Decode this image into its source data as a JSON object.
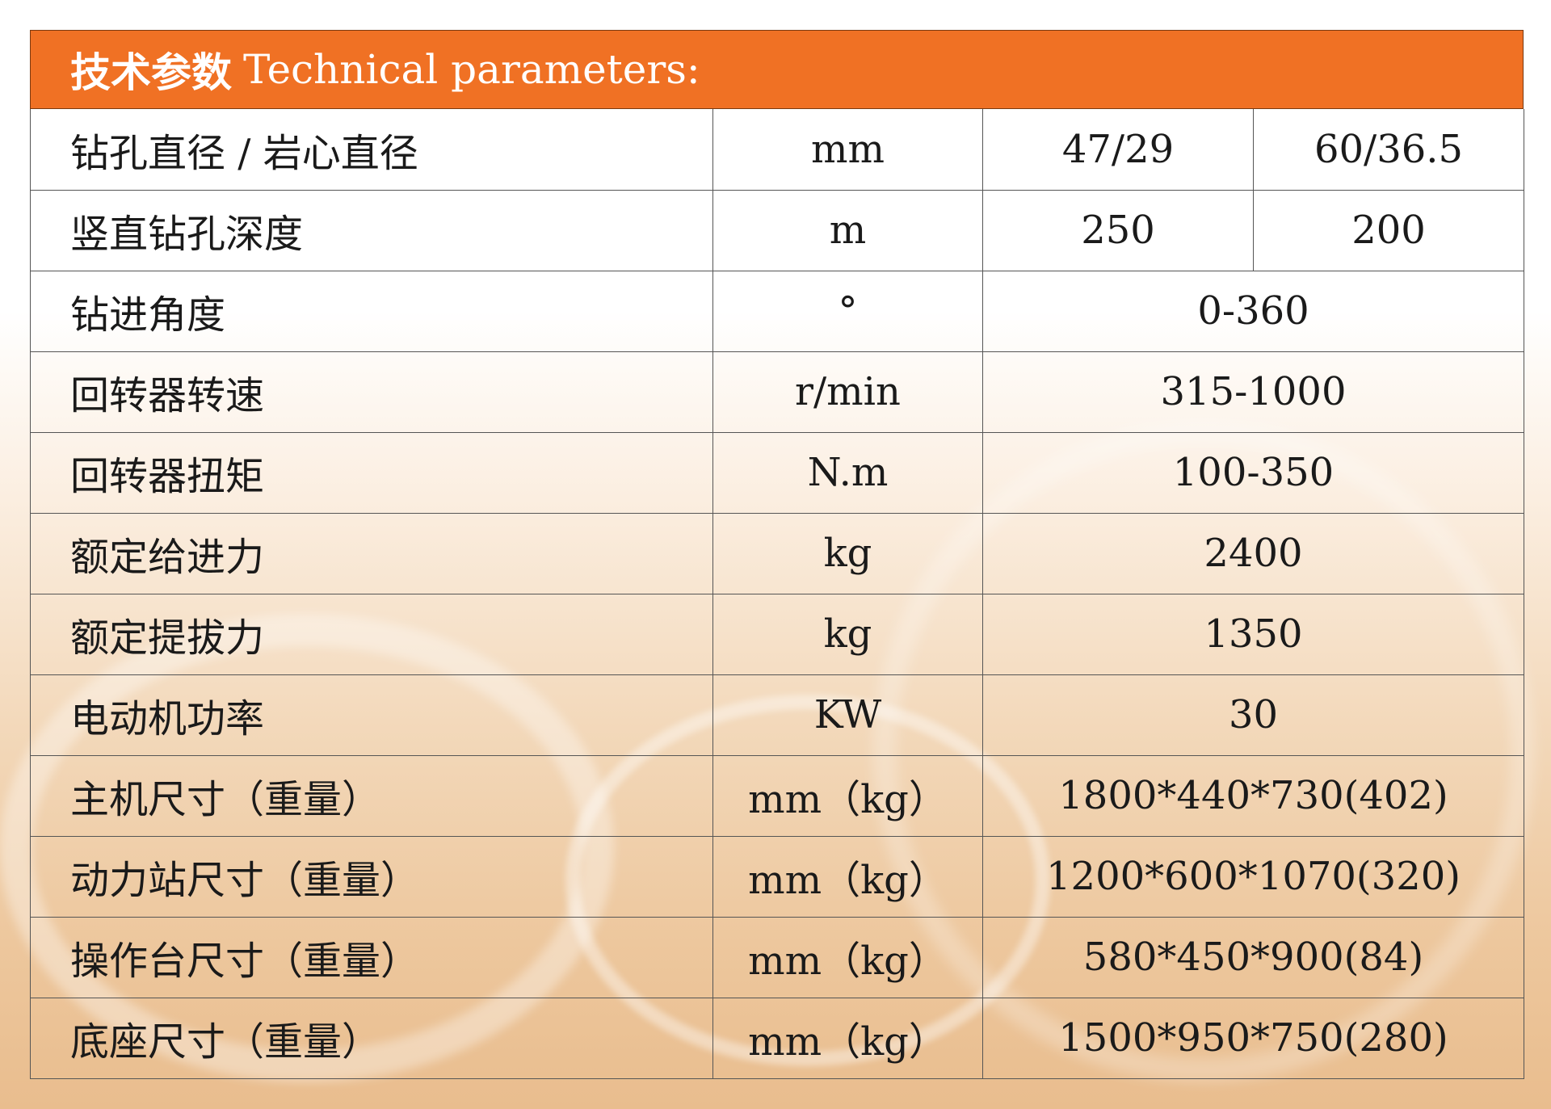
{
  "header": {
    "title_cn": "技术参数",
    "title_en": "Technical parameters:"
  },
  "colors": {
    "header_bg": "#f07124"
  },
  "rows": [
    {
      "name": "钻孔直径 / 岩心直径",
      "unit": "mm",
      "values": [
        "47/29",
        "60/36.5"
      ]
    },
    {
      "name": "竖直钻孔深度",
      "unit": "m",
      "values": [
        "250",
        "200"
      ]
    },
    {
      "name": "钻进角度",
      "unit": "°",
      "values": [
        "0-360"
      ]
    },
    {
      "name": "回转器转速",
      "unit": "r/min",
      "values": [
        "315-1000"
      ]
    },
    {
      "name": "回转器扭矩",
      "unit": "N.m",
      "values": [
        "100-350"
      ]
    },
    {
      "name": "额定给进力",
      "unit": "kg",
      "values": [
        "2400"
      ]
    },
    {
      "name": "额定提拔力",
      "unit": "kg",
      "values": [
        "1350"
      ]
    },
    {
      "name": "电动机功率",
      "unit": "KW",
      "values": [
        "30"
      ]
    },
    {
      "name": "主机尺寸（重量）",
      "unit": "mm（kg）",
      "values": [
        "1800*440*730(402)"
      ]
    },
    {
      "name": "动力站尺寸（重量）",
      "unit": "mm（kg）",
      "values": [
        "1200*600*1070(320)"
      ]
    },
    {
      "name": "操作台尺寸（重量）",
      "unit": "mm（kg）",
      "values": [
        "580*450*900(84)"
      ]
    },
    {
      "name": "底座尺寸（重量）",
      "unit": "mm（kg）",
      "values": [
        "1500*950*750(280)"
      ]
    }
  ]
}
